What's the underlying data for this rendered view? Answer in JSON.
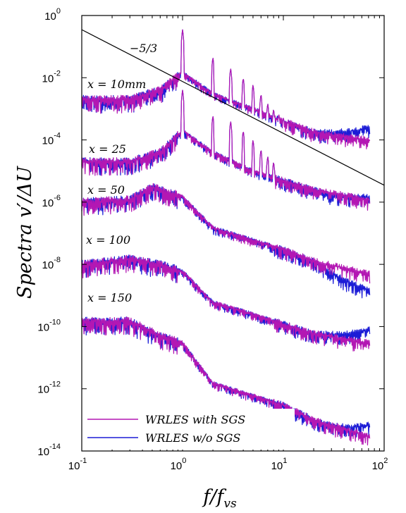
{
  "chart_data": {
    "type": "line",
    "x_scale": "log",
    "y_scale": "log",
    "xlim": [
      0.1,
      100
    ],
    "ylim": [
      1e-14,
      1
    ],
    "xlabel": "f/f_vs",
    "ylabel": "Spectra v'/ΔU",
    "grid": false,
    "legend_position": "bottom-left",
    "x_ticks": [
      {
        "base": "10",
        "exp": "-1"
      },
      {
        "base": "10",
        "exp": "0"
      },
      {
        "base": "10",
        "exp": "1"
      },
      {
        "base": "10",
        "exp": "2"
      }
    ],
    "y_ticks": [
      {
        "base": "10",
        "exp": "0"
      },
      {
        "base": "10",
        "exp": "-2"
      },
      {
        "base": "10",
        "exp": "-4"
      },
      {
        "base": "10",
        "exp": "-6"
      },
      {
        "base": "10",
        "exp": "-8"
      },
      {
        "base": "10",
        "exp": "-10"
      },
      {
        "base": "10",
        "exp": "-12"
      },
      {
        "base": "10",
        "exp": "-14"
      }
    ],
    "reference_line": {
      "label": "−5/3",
      "slope": -1.6667,
      "points": [
        [
          0.1,
          0.35
        ],
        [
          100,
          3.5e-06
        ]
      ]
    },
    "stations": [
      {
        "label": "x = 10mm",
        "shape": [
          [
            0.1,
            0.002
          ],
          [
            0.3,
            0.002
          ],
          [
            0.6,
            0.004
          ],
          [
            1.0,
            0.015
          ],
          [
            2.0,
            0.003
          ],
          [
            5.0,
            0.001
          ],
          [
            10,
            0.0004
          ],
          [
            20,
            0.00018
          ],
          [
            70,
            0.0001
          ]
        ],
        "peaks": [
          [
            1,
            0.35
          ],
          [
            2,
            0.045
          ],
          [
            3,
            0.02
          ],
          [
            4,
            0.01
          ],
          [
            5,
            0.006
          ],
          [
            6,
            0.003
          ],
          [
            7,
            0.0015
          ],
          [
            8,
            0.001
          ],
          [
            9,
            0.0007
          ],
          [
            10,
            0.0005
          ],
          [
            11,
            0.0004
          ]
        ],
        "wo_sgs_end": 0.00025
      },
      {
        "label": "x = 25",
        "shape": [
          [
            0.1,
            2e-05
          ],
          [
            0.3,
            2e-05
          ],
          [
            0.6,
            4e-05
          ],
          [
            1.0,
            0.0002
          ],
          [
            2.0,
            4e-05
          ],
          [
            5.0,
            1e-05
          ],
          [
            10,
            5e-06
          ],
          [
            20,
            2.5e-06
          ],
          [
            70,
            1.2e-06
          ]
        ],
        "peaks": [
          [
            1,
            0.004
          ],
          [
            2,
            0.0006
          ],
          [
            3,
            0.0004
          ],
          [
            4,
            0.0002
          ],
          [
            5,
            0.0001
          ],
          [
            6,
            5e-05
          ],
          [
            7,
            3e-05
          ],
          [
            8,
            2e-05
          ]
        ],
        "wo_sgs_end": 1.5e-06
      },
      {
        "label": "x = 50",
        "shape": [
          [
            0.1,
            1e-06
          ],
          [
            0.3,
            1.2e-06
          ],
          [
            0.5,
            3e-06
          ],
          [
            1.0,
            1.5e-06
          ],
          [
            2.0,
            1.5e-07
          ],
          [
            5.0,
            6e-08
          ],
          [
            10,
            3e-08
          ],
          [
            20,
            1.3e-08
          ],
          [
            70,
            5e-09
          ]
        ],
        "peaks": [],
        "wo_sgs_end": 1.5e-09
      },
      {
        "label": "x = 100",
        "shape": [
          [
            0.1,
            1e-08
          ],
          [
            0.3,
            1.5e-08
          ],
          [
            0.6,
            1e-08
          ],
          [
            1.0,
            6e-09
          ],
          [
            2.0,
            6e-10
          ],
          [
            5.0,
            2.5e-10
          ],
          [
            10,
            1.2e-10
          ],
          [
            20,
            6e-11
          ],
          [
            70,
            3e-11
          ]
        ],
        "peaks": [],
        "wo_sgs_end": 8e-11
      },
      {
        "label": "x = 150",
        "shape": [
          [
            0.1,
            1.5e-10
          ],
          [
            0.3,
            1.5e-10
          ],
          [
            0.6,
            5e-11
          ],
          [
            1.0,
            3e-11
          ],
          [
            2.0,
            1.5e-12
          ],
          [
            5.0,
            6e-13
          ],
          [
            10,
            3e-13
          ],
          [
            20,
            1e-13
          ],
          [
            70,
            3e-14
          ]
        ],
        "peaks": [],
        "wo_sgs_end": 7e-14
      }
    ],
    "series": [
      {
        "name": "WRLES with SGS",
        "color": "#b317b3"
      },
      {
        "name": "WRLES w/o SGS",
        "color": "#1c1cd6"
      }
    ]
  }
}
